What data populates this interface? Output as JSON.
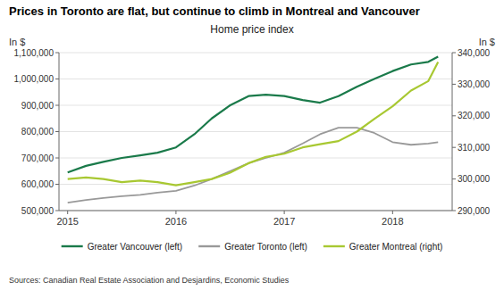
{
  "chart_data": {
    "type": "line",
    "title": "Prices in Toronto are flat, but continue to climb in Montreal and Vancouver",
    "subtitle": "Home price index",
    "ylabel": "In $",
    "y2label": "In $",
    "source": "Sources: Canadian Real Estate Association and Desjardins, Economic Studies",
    "x": [
      2015.0,
      2015.17,
      2015.33,
      2015.5,
      2015.67,
      2015.83,
      2016.0,
      2016.17,
      2016.33,
      2016.5,
      2016.67,
      2016.83,
      2017.0,
      2017.17,
      2017.33,
      2017.5,
      2017.67,
      2017.83,
      2018.0,
      2018.17,
      2018.33,
      2018.42
    ],
    "xlim": [
      2014.92,
      2018.55
    ],
    "xticks": [
      2015,
      2016,
      2017,
      2018
    ],
    "ylim": [
      500000,
      1100000
    ],
    "yticks": [
      {
        "value": 500000,
        "label": "500,000"
      },
      {
        "value": 600000,
        "label": "600,000"
      },
      {
        "value": 700000,
        "label": "700,000"
      },
      {
        "value": 800000,
        "label": "800,000"
      },
      {
        "value": 900000,
        "label": "900,000"
      },
      {
        "value": 1000000,
        "label": "1,000,000"
      },
      {
        "value": 1100000,
        "label": "1,100,000"
      }
    ],
    "y2lim": [
      290000,
      340000
    ],
    "y2ticks": [
      {
        "value": 290000,
        "label": "290,000"
      },
      {
        "value": 300000,
        "label": "300,000"
      },
      {
        "value": 310000,
        "label": "310,000"
      },
      {
        "value": 320000,
        "label": "320,000"
      },
      {
        "value": 330000,
        "label": "330,000"
      },
      {
        "value": 340000,
        "label": "340,000"
      }
    ],
    "grid": true,
    "legend": "bottom",
    "series": [
      {
        "name": "Greater Vancouver (left)",
        "color": "#1a7a4a",
        "axis": "y",
        "values": [
          645000,
          670000,
          685000,
          700000,
          710000,
          720000,
          740000,
          790000,
          850000,
          900000,
          935000,
          940000,
          935000,
          920000,
          910000,
          935000,
          970000,
          1000000,
          1030000,
          1055000,
          1065000,
          1085000
        ]
      },
      {
        "name": "Greater Toronto (left)",
        "color": "#999999",
        "axis": "y",
        "values": [
          530000,
          540000,
          548000,
          555000,
          560000,
          568000,
          575000,
          595000,
          620000,
          650000,
          680000,
          700000,
          720000,
          755000,
          790000,
          815000,
          815000,
          795000,
          760000,
          750000,
          755000,
          760000
        ]
      },
      {
        "name": "Greater Montreal (right)",
        "color": "#a8c832",
        "axis": "y2",
        "values": [
          300000,
          300500,
          300000,
          299000,
          299500,
          299000,
          298000,
          299000,
          300000,
          302000,
          305000,
          307000,
          308000,
          310000,
          311000,
          312000,
          315000,
          319000,
          323000,
          328000,
          331000,
          337000
        ]
      }
    ]
  }
}
